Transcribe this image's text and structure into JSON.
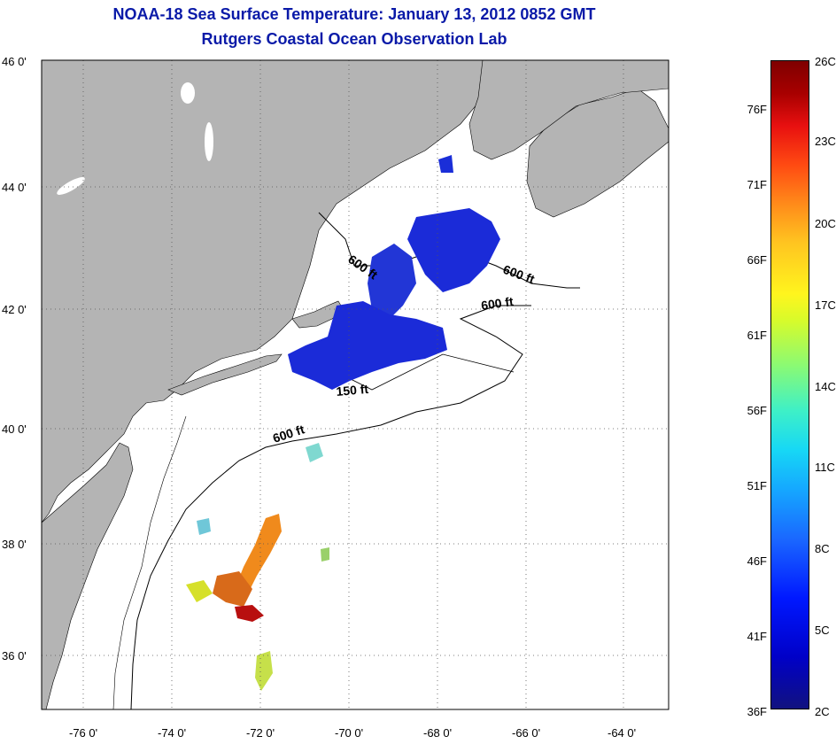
{
  "title_line1": "NOAA-18 Sea Surface Temperature:  January 13, 2012 0852 GMT",
  "title_line2": "Rutgers Coastal Ocean Observation Lab",
  "lat_labels": [
    "46 0'",
    "44 0'",
    "42 0'",
    "40 0'",
    "38 0'",
    "36 0'"
  ],
  "lon_labels": [
    "-76 0'",
    "-74 0'",
    "-72 0'",
    "-70 0'",
    "-68 0'",
    "-66 0'",
    "-64 0'"
  ],
  "contour_labels": [
    "600 ft",
    "600 ft",
    "600 ft",
    "150 ft",
    "600 ft"
  ],
  "colorbar": {
    "fahrenheit": [
      "76F",
      "71F",
      "66F",
      "61F",
      "56F",
      "51F",
      "46F",
      "41F",
      "36F"
    ],
    "celsius": [
      "26C",
      "23C",
      "20C",
      "17C",
      "14C",
      "11C",
      "8C",
      "5C",
      "2C"
    ]
  },
  "colors": {
    "land": "#b4b4b4",
    "ocean": "#ffffff",
    "title": "#0a1aa8",
    "cold": "#1b2bd8",
    "warm": "#e8701a"
  }
}
